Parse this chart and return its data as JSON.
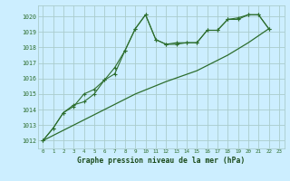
{
  "title": "Graphe pression niveau de la mer (hPa)",
  "background_color": "#cceeff",
  "grid_color": "#aacccc",
  "line_color": "#2d6e2d",
  "xlim": [
    -0.5,
    23.5
  ],
  "ylim": [
    1011.5,
    1020.7
  ],
  "yticks": [
    1012,
    1013,
    1014,
    1015,
    1016,
    1017,
    1018,
    1019,
    1020
  ],
  "xticks": [
    0,
    1,
    2,
    3,
    4,
    5,
    6,
    7,
    8,
    9,
    10,
    11,
    12,
    13,
    14,
    15,
    16,
    17,
    18,
    19,
    20,
    21,
    22,
    23
  ],
  "series1": [
    [
      0,
      1012.0
    ],
    [
      1,
      1012.8
    ],
    [
      2,
      1013.8
    ],
    [
      3,
      1014.3
    ],
    [
      4,
      1014.5
    ],
    [
      5,
      1015.0
    ],
    [
      6,
      1015.9
    ],
    [
      7,
      1016.7
    ],
    [
      8,
      1017.8
    ],
    [
      9,
      1019.2
    ],
    [
      10,
      1020.1
    ],
    [
      11,
      1018.5
    ],
    [
      12,
      1018.2
    ],
    [
      13,
      1018.2
    ],
    [
      14,
      1018.3
    ],
    [
      15,
      1018.3
    ],
    [
      16,
      1019.1
    ],
    [
      17,
      1019.1
    ],
    [
      18,
      1019.8
    ],
    [
      19,
      1019.8
    ],
    [
      20,
      1020.1
    ],
    [
      21,
      1020.1
    ],
    [
      22,
      1019.2
    ]
  ],
  "series2": [
    [
      0,
      1012.0
    ],
    [
      1,
      1012.8
    ],
    [
      2,
      1013.8
    ],
    [
      3,
      1014.2
    ],
    [
      4,
      1015.0
    ],
    [
      5,
      1015.3
    ],
    [
      6,
      1015.9
    ],
    [
      7,
      1016.3
    ],
    [
      8,
      1017.8
    ],
    [
      9,
      1019.2
    ],
    [
      10,
      1020.1
    ],
    [
      11,
      1018.5
    ],
    [
      12,
      1018.2
    ],
    [
      13,
      1018.3
    ],
    [
      14,
      1018.3
    ],
    [
      15,
      1018.3
    ],
    [
      16,
      1019.1
    ],
    [
      17,
      1019.1
    ],
    [
      18,
      1019.8
    ],
    [
      19,
      1019.9
    ],
    [
      20,
      1020.1
    ],
    [
      21,
      1020.1
    ],
    [
      22,
      1019.2
    ]
  ],
  "series3": [
    [
      0,
      1012.0
    ],
    [
      3,
      1013.0
    ],
    [
      6,
      1014.0
    ],
    [
      9,
      1015.0
    ],
    [
      12,
      1015.8
    ],
    [
      15,
      1016.5
    ],
    [
      18,
      1017.5
    ],
    [
      20,
      1018.3
    ],
    [
      22,
      1019.2
    ]
  ]
}
